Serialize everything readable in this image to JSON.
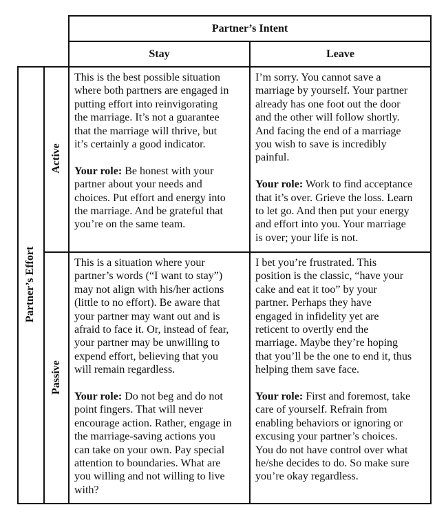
{
  "header": {
    "title": "Partner’s Intent",
    "columns": [
      "Stay",
      "Leave"
    ]
  },
  "side": {
    "title": "Partner’s Effort",
    "rows": [
      "Active",
      "Passive"
    ]
  },
  "cells": {
    "active_stay": {
      "body": [
        "This is the best possible situation",
        "where both partners are engaged in",
        "putting effort into reinvigorating",
        "the marriage. It’s not a guarantee",
        "that the marriage will thrive, but",
        "it’s certainly a good indicator."
      ],
      "role_label": "Your role:",
      "role": [
        " Be honest with your",
        "partner about your needs and",
        "choices. Put effort and energy into",
        "the marriage. And be grateful that",
        "you’re on the same team."
      ]
    },
    "active_leave": {
      "body": [
        "I’m sorry.  You cannot save a",
        "marriage by yourself. Your partner",
        "already has one foot out the door",
        "and the other will follow shortly.",
        "And facing the end of a marriage",
        "you wish to save is incredibly",
        "painful."
      ],
      "role_label": "Your role:",
      "role": [
        " Work to find acceptance",
        "that it’s over. Grieve the loss. Learn",
        "to let go. And then put your energy",
        "and effort into you. Your marriage",
        "is over; your life is not."
      ]
    },
    "passive_stay": {
      "body": [
        "This is a situation where your",
        "partner’s words (“I want to stay”)",
        "may not align with his/her actions",
        "(little to no effort). Be aware that",
        "your partner may want out and is",
        "afraid to face it. Or, instead of fear,",
        "your partner may be unwilling to",
        "expend effort, believing that you",
        "will remain regardless."
      ],
      "role_label": "Your role:",
      "role": [
        " Do not beg and do not",
        "point fingers. That will never",
        "encourage action. Rather, engage in",
        "the marriage-saving actions you",
        "can take on your own. Pay special",
        "attention to boundaries. What are",
        "you willing and not willing to live",
        "with?"
      ]
    },
    "passive_leave": {
      "body": [
        "I bet you’re frustrated. This",
        "position is the classic, “have your",
        "cake and eat it too” by your",
        "partner. Perhaps they have",
        "engaged in infidelity yet are",
        "reticent to overtly end the",
        "marriage.  Maybe they’re hoping",
        "that you’ll be the one to end it, thus",
        "helping them save face."
      ],
      "role_label": "Your role:",
      "role": [
        " First and foremost, take",
        "care of yourself. Refrain from",
        "enabling behaviors or ignoring or",
        "excusing your partner’s choices.",
        "You do not have control over what",
        "he/she decides to do. So make sure",
        "you’re okay regardless."
      ]
    }
  }
}
